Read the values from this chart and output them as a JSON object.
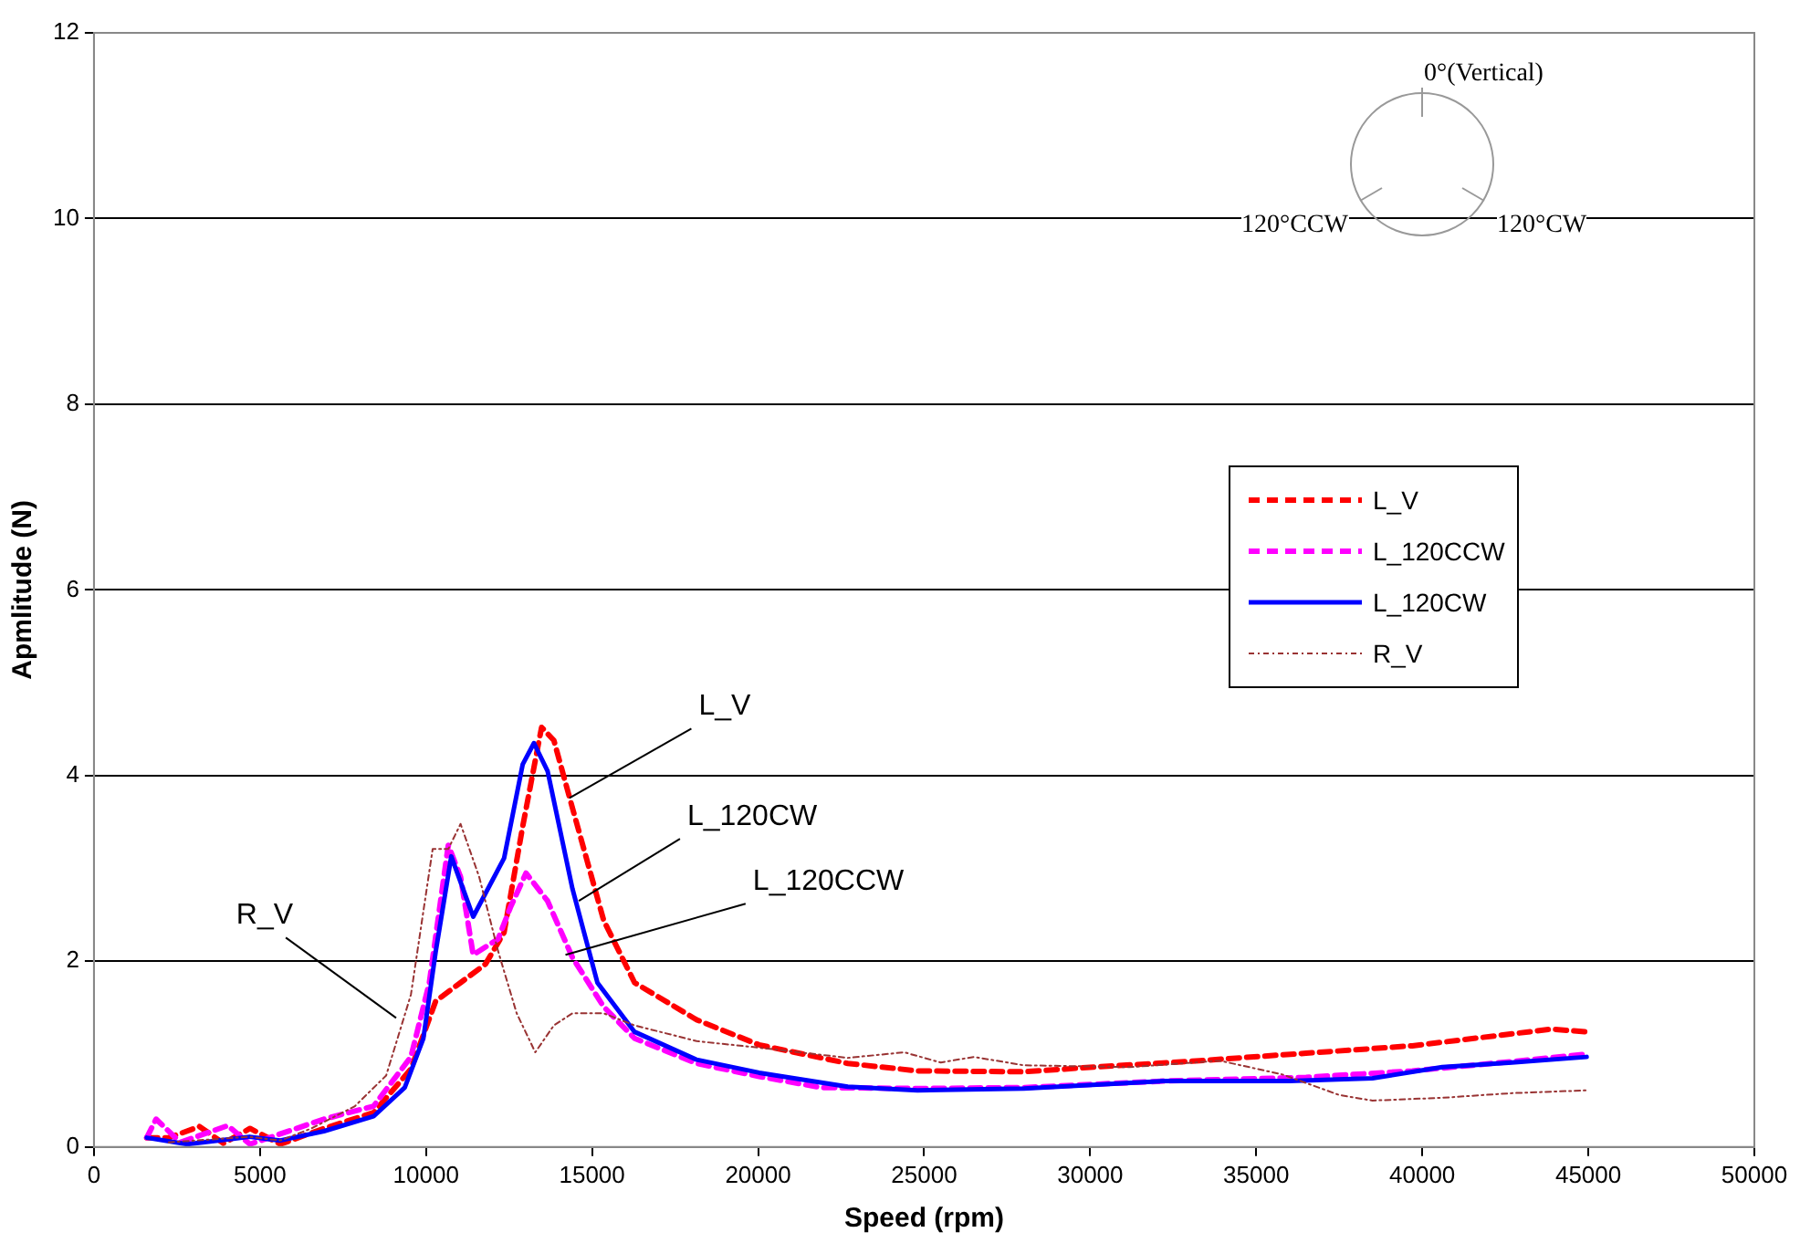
{
  "chart_data": {
    "type": "line",
    "xlabel": "Speed (rpm)",
    "ylabel": "Apmlitude (N)",
    "xlim": [
      0,
      50000
    ],
    "xticks": [
      0,
      5000,
      10000,
      15000,
      20000,
      25000,
      30000,
      35000,
      40000,
      45000,
      50000
    ],
    "ylim": [
      0,
      12
    ],
    "yticks": [
      0,
      2,
      4,
      6,
      8,
      10,
      12
    ],
    "grid": "y",
    "legend": "right",
    "marker": "none",
    "series": [
      {
        "name": "L_V",
        "color": "#ff0000",
        "line_style": "dashed",
        "x": [
          1590,
          2250,
          3180,
          3900,
          4700,
          5615,
          6925,
          8420,
          9545,
          10290,
          11040,
          11790,
          12350,
          12910,
          13480,
          13850,
          14410,
          15350,
          16280,
          18150,
          20030,
          22700,
          24800,
          28000,
          30100,
          33300,
          36500,
          39700,
          41800,
          43900,
          44950
        ],
        "values": [
          0.1,
          0.1,
          0.22,
          0.04,
          0.2,
          0.03,
          0.2,
          0.37,
          0.84,
          1.57,
          1.77,
          1.97,
          2.31,
          3.45,
          4.52,
          4.38,
          3.65,
          2.44,
          1.77,
          1.37,
          1.1,
          0.9,
          0.82,
          0.81,
          0.86,
          0.93,
          1.01,
          1.09,
          1.18,
          1.27,
          1.24
        ]
      },
      {
        "name": "L_120CCW",
        "color": "#ff00ff",
        "line_style": "dashed",
        "x": [
          1590,
          1870,
          2600,
          4030,
          4700,
          6925,
          8420,
          9545,
          10100,
          10670,
          11040,
          11420,
          12170,
          12540,
          13010,
          13660,
          14410,
          15350,
          16280,
          18150,
          20030,
          21900,
          24800,
          28000,
          32200,
          36500,
          39700,
          42700,
          44950
        ],
        "values": [
          0.1,
          0.3,
          0.05,
          0.23,
          0.03,
          0.3,
          0.44,
          0.97,
          1.77,
          3.25,
          2.91,
          2.07,
          2.24,
          2.58,
          2.95,
          2.65,
          2.04,
          1.51,
          1.17,
          0.9,
          0.76,
          0.64,
          0.63,
          0.64,
          0.71,
          0.75,
          0.82,
          0.92,
          1.0
        ]
      },
      {
        "name": "L_120CW",
        "color": "#0000ff",
        "line_style": "solid",
        "x": [
          1590,
          2810,
          4680,
          5615,
          6925,
          8420,
          9360,
          9920,
          10290,
          10760,
          11420,
          12350,
          12910,
          13250,
          13660,
          14410,
          15160,
          16280,
          18150,
          20030,
          22700,
          24800,
          28000,
          32200,
          36000,
          38500,
          40600,
          42700,
          44950
        ],
        "values": [
          0.1,
          0.03,
          0.11,
          0.07,
          0.17,
          0.33,
          0.64,
          1.17,
          2.1,
          3.13,
          2.48,
          3.11,
          4.12,
          4.35,
          4.05,
          2.78,
          1.77,
          1.24,
          0.94,
          0.8,
          0.65,
          0.61,
          0.63,
          0.71,
          0.71,
          0.74,
          0.86,
          0.91,
          0.97
        ]
      },
      {
        "name": "R_V",
        "color": "#993333",
        "line_style": "dotted",
        "x": [
          2250,
          4680,
          5615,
          6550,
          7860,
          8800,
          9545,
          10200,
          10670,
          11040,
          11600,
          12170,
          12730,
          13290,
          13850,
          14410,
          15350,
          16280,
          18150,
          20030,
          22700,
          24400,
          25500,
          26500,
          28000,
          31200,
          33900,
          35800,
          37500,
          38500,
          40600,
          42700,
          44950
        ],
        "values": [
          0.05,
          0.11,
          0.07,
          0.2,
          0.44,
          0.77,
          1.64,
          3.21,
          3.21,
          3.48,
          2.91,
          2.11,
          1.44,
          1.02,
          1.31,
          1.44,
          1.44,
          1.31,
          1.14,
          1.07,
          0.96,
          1.02,
          0.91,
          0.97,
          0.88,
          0.86,
          0.93,
          0.78,
          0.56,
          0.5,
          0.53,
          0.58,
          0.61
        ]
      }
    ],
    "annotations": [
      {
        "text": "L_V",
        "x": 14320,
        "y": 3.76
      },
      {
        "text": "L_120CW",
        "x": 14600,
        "y": 2.65
      },
      {
        "text": "L_120CCW",
        "x": 14200,
        "y": 2.07
      },
      {
        "text": "R_V",
        "x": 9100,
        "y": 1.39
      },
      "0°(Vertical)",
      "120°CCW",
      "120°CW"
    ]
  }
}
